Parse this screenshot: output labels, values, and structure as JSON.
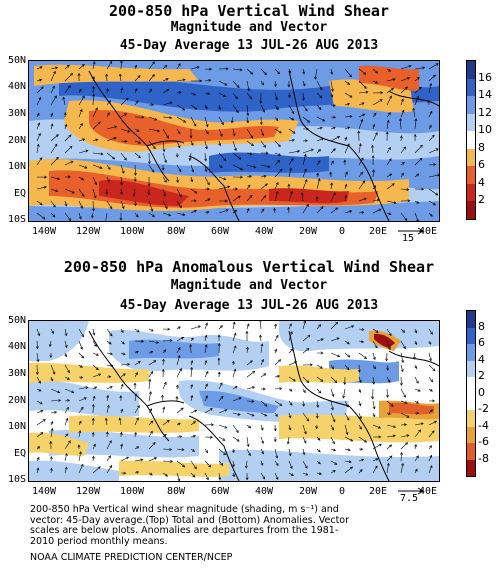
{
  "panel_top": {
    "title": "200-850 hPa Vertical Wind Shear",
    "subtitle": "Magnitude and Vector",
    "period": "45-Day Average 13 JUL-26 AUG 2013",
    "lat_labels": [
      "50N",
      "40N",
      "30N",
      "20N",
      "10N",
      "EQ",
      "10S"
    ],
    "lon_labels": [
      "140W",
      "120W",
      "100W",
      "80W",
      "60W",
      "40W",
      "20W",
      "0",
      "20E",
      "40E"
    ],
    "colorbar_labels": [
      "16",
      "14",
      "12",
      "10",
      "8",
      "6",
      "4",
      "2"
    ],
    "colorbar_colors": [
      "#1e3a8a",
      "#2f63c8",
      "#6d9be6",
      "#b3d0f2",
      "#ffffff",
      "#f5b84f",
      "#e8602a",
      "#c9261e",
      "#9a0f0f"
    ],
    "ref_vector_label": "15"
  },
  "panel_bottom": {
    "title": "200-850 hPa Anomalous Vertical Wind Shear",
    "subtitle": "Magnitude and Vector",
    "period": "45-Day Average 13 JUL-26 AUG 2013",
    "lat_labels": [
      "50N",
      "40N",
      "30N",
      "20N",
      "10N",
      "EQ",
      "10S"
    ],
    "lon_labels": [
      "140W",
      "120W",
      "100W",
      "80W",
      "60W",
      "40W",
      "20W",
      "0",
      "20E",
      "40E"
    ],
    "colorbar_labels": [
      "8",
      "6",
      "4",
      "2",
      "0",
      "-2",
      "-4",
      "-6",
      "-8"
    ],
    "colorbar_colors": [
      "#1e3a8a",
      "#2f63c8",
      "#6d9be6",
      "#b3d0f2",
      "#ffffff",
      "#ffffff",
      "#f5d36a",
      "#e8a23a",
      "#e0602a",
      "#9a0f0f"
    ],
    "ref_vector_label": "7.5"
  },
  "caption": {
    "line1": "200-850 hPa Vertical wind shear magnitude (shading, m s⁻¹) and",
    "line2": "vector: 45-Day average.(Top) Total and (Bottom) Anomalies. Vector",
    "line3": "scales are below plots. Anomalies are departures from the 1981-",
    "line4": "2010 period monthly means.",
    "credit": "NOAA CLIMATE PREDICTION CENTER/NCEP"
  }
}
